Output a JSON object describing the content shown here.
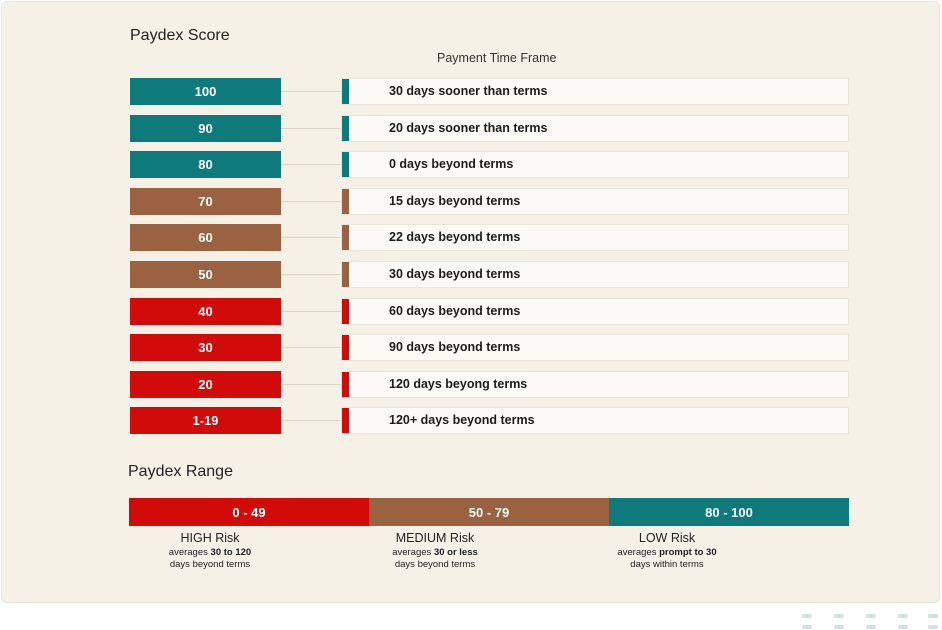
{
  "header": {
    "title": "Paydex Score",
    "subtitle": "Payment Time Frame"
  },
  "colors": {
    "low": "#0f7a7c",
    "medium": "#9a6241",
    "high": "#d10a0a"
  },
  "rows": [
    {
      "score": "100",
      "timeframe": "30 days sooner than terms",
      "risk": "low"
    },
    {
      "score": "90",
      "timeframe": "20 days sooner than terms",
      "risk": "low"
    },
    {
      "score": "80",
      "timeframe": "0 days beyond terms",
      "risk": "low"
    },
    {
      "score": "70",
      "timeframe": "15 days beyond terms",
      "risk": "medium"
    },
    {
      "score": "60",
      "timeframe": "22 days beyond terms",
      "risk": "medium"
    },
    {
      "score": "50",
      "timeframe": "30 days beyond terms",
      "risk": "medium"
    },
    {
      "score": "40",
      "timeframe": "60 days beyond terms",
      "risk": "high"
    },
    {
      "score": "30",
      "timeframe": "90 days beyond terms",
      "risk": "high"
    },
    {
      "score": "20",
      "timeframe": "120 days beyong terms",
      "risk": "high"
    },
    {
      "score": "1-19",
      "timeframe": "120+ days beyond terms",
      "risk": "high"
    }
  ],
  "range": {
    "title": "Paydex Range",
    "segments": [
      {
        "range": "0 - 49",
        "label": "HIGH Risk",
        "desc_prefix": "averages ",
        "desc_bold": "30 to 120",
        "desc_suffix": "days beyond terms",
        "risk": "high"
      },
      {
        "range": "50 - 79",
        "label": "MEDIUM Risk",
        "desc_prefix": "averages ",
        "desc_bold": "30 or less",
        "desc_suffix": "days beyond terms",
        "risk": "medium"
      },
      {
        "range": "80 - 100",
        "label": "LOW Risk",
        "desc_prefix": "averages ",
        "desc_bold": "prompt to 30",
        "desc_suffix": "days within terms",
        "risk": "low"
      }
    ]
  }
}
